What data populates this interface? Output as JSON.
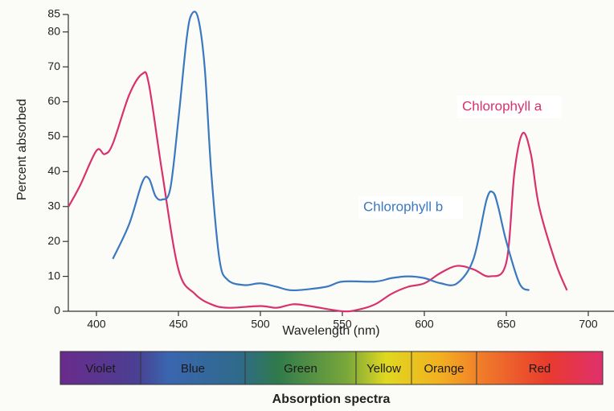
{
  "chart_data": {
    "type": "line",
    "xlabel": "Wavelength (nm)",
    "ylabel": "Percent absorbed",
    "xlim": [
      383,
      712
    ],
    "ylim": [
      0,
      85
    ],
    "xticks": [
      400,
      450,
      500,
      550,
      600,
      650,
      700
    ],
    "yticks": [
      0,
      10,
      20,
      30,
      40,
      50,
      60,
      70,
      80,
      85
    ],
    "series": [
      {
        "name": "Chlorophyll a",
        "color": "#d9306e",
        "x": [
          383,
          390,
          400,
          405,
          410,
          420,
          428,
          432,
          440,
          450,
          460,
          470,
          480,
          500,
          510,
          520,
          530,
          550,
          560,
          570,
          580,
          590,
          600,
          610,
          620,
          630,
          640,
          650,
          655,
          660,
          665,
          670,
          680,
          687
        ],
        "values": [
          30,
          36,
          46,
          45,
          48,
          62,
          68,
          65,
          40,
          12,
          5,
          2,
          1,
          1.5,
          1,
          2,
          1.5,
          0,
          0.5,
          2,
          5,
          7,
          8,
          11,
          13,
          12,
          10,
          14,
          40,
          51,
          45,
          30,
          14,
          6
        ]
      },
      {
        "name": "Chlorophyll b",
        "color": "#3a78c0",
        "x": [
          410,
          420,
          428,
          432,
          436,
          440,
          445,
          450,
          455,
          458,
          462,
          466,
          470,
          475,
          480,
          490,
          500,
          510,
          520,
          540,
          550,
          570,
          580,
          590,
          600,
          610,
          620,
          630,
          638,
          642,
          645,
          650,
          658,
          664
        ],
        "values": [
          15,
          25,
          37,
          38,
          33,
          32,
          35,
          55,
          78,
          85,
          84,
          70,
          40,
          15,
          9,
          7.5,
          8,
          7,
          6,
          7,
          8.5,
          8.5,
          9.5,
          10,
          9.5,
          8,
          8,
          15,
          32,
          34,
          30,
          20,
          8,
          6
        ]
      }
    ],
    "spectrum_bands": [
      "Violet",
      "Blue",
      "Green",
      "Yellow",
      "Orange",
      "Red"
    ],
    "caption": "Absorption spectra"
  }
}
